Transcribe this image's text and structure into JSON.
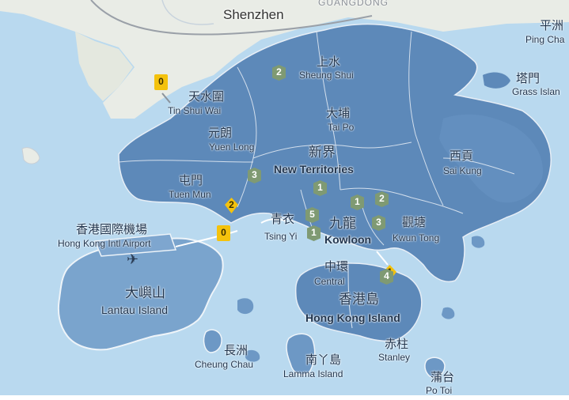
{
  "map": {
    "colors": {
      "sea": "#b9d9ef",
      "land_mainland": "#e9ece6",
      "hk_fill": "#5d89b9",
      "district_line": "#dfe8f2",
      "marker_green": "#7f9a73",
      "marker_yellow": "#f4c20d"
    },
    "labels": {
      "shenzhen": "Shenzhen",
      "guangdong": "GUANGDONG",
      "ping_chau_zh": "平洲",
      "ping_chau_en": "Ping Cha",
      "grass_island_zh": "塔門",
      "grass_island_en": "Grass Islan",
      "tin_shui_wai_zh": "天水圍",
      "tin_shui_wai_en": "Tin Shui Wai",
      "sheung_shui_zh": "上水",
      "sheung_shui_en": "Sheung Shui",
      "tai_po_zh": "大埔",
      "tai_po_en": "Tai Po",
      "yuen_long_zh": "元朗",
      "yuen_long_en": "Yuen Long",
      "new_territories_zh": "新界",
      "new_territories_en": "New Territories",
      "sai_kung_zh": "西貢",
      "sai_kung_en": "Sai Kung",
      "tuen_mun_zh": "屯門",
      "tuen_mun_en": "Tuen Mun",
      "airport_zh": "香港國際機場",
      "airport_en": "Hong Kong Intl Airport",
      "tsing_yi_zh": "青衣",
      "tsing_yi_en": "Tsing Yi",
      "kowloon_zh": "九龍",
      "kowloon_en": "Kowloon",
      "kwun_tong_zh": "觀塘",
      "kwun_tong_en": "Kwun Tong",
      "central_zh": "中環",
      "central_en": "Central",
      "lantau_zh": "大嶼山",
      "lantau_en": "Lantau Island",
      "hk_island_zh": "香港島",
      "hk_island_en": "Hong Kong Island",
      "stanley_zh": "赤柱",
      "stanley_en": "Stanley",
      "cheung_chau_zh": "長洲",
      "cheung_chau_en": "Cheung Chau",
      "lamma_zh": "南丫島",
      "lamma_en": "Lamma Island",
      "po_toi_zh": "蒲台",
      "po_toi_en": "Po Toi"
    },
    "markers": [
      {
        "label": "0",
        "style": "yellow"
      },
      {
        "label": "2",
        "style": "green"
      },
      {
        "label": "3",
        "style": "green"
      },
      {
        "label": "1",
        "style": "green"
      },
      {
        "label": "1",
        "style": "green"
      },
      {
        "label": "2",
        "style": "green"
      },
      {
        "label": "5",
        "style": "green"
      },
      {
        "label": "2",
        "style": "yellow"
      },
      {
        "label": "0",
        "style": "yellow"
      },
      {
        "label": "1",
        "style": "yellow"
      },
      {
        "label": "1",
        "style": "green"
      },
      {
        "label": "3",
        "style": "green"
      },
      {
        "label": "4",
        "style": "green"
      }
    ]
  }
}
